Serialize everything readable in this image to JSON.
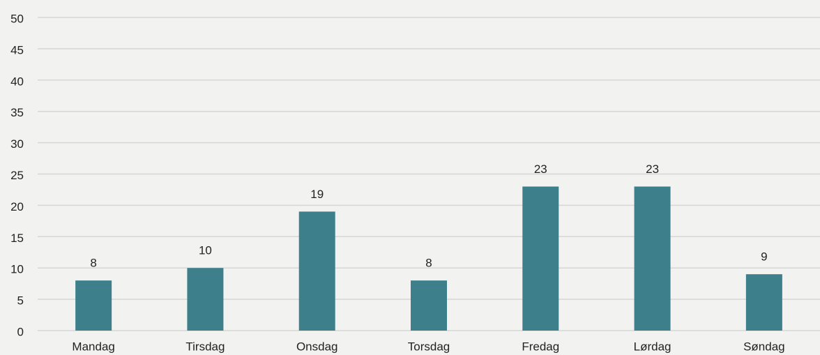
{
  "chart_data": {
    "type": "bar",
    "categories": [
      "Mandag",
      "Tirsdag",
      "Onsdag",
      "Torsdag",
      "Fredag",
      "Lørdag",
      "Søndag"
    ],
    "values": [
      8,
      10,
      19,
      8,
      23,
      23,
      9
    ],
    "color": "#3e7f8c",
    "ylim": [
      0,
      50
    ],
    "yticks": [
      0,
      5,
      10,
      15,
      20,
      25,
      30,
      35,
      40,
      45,
      50
    ],
    "grid": true
  }
}
